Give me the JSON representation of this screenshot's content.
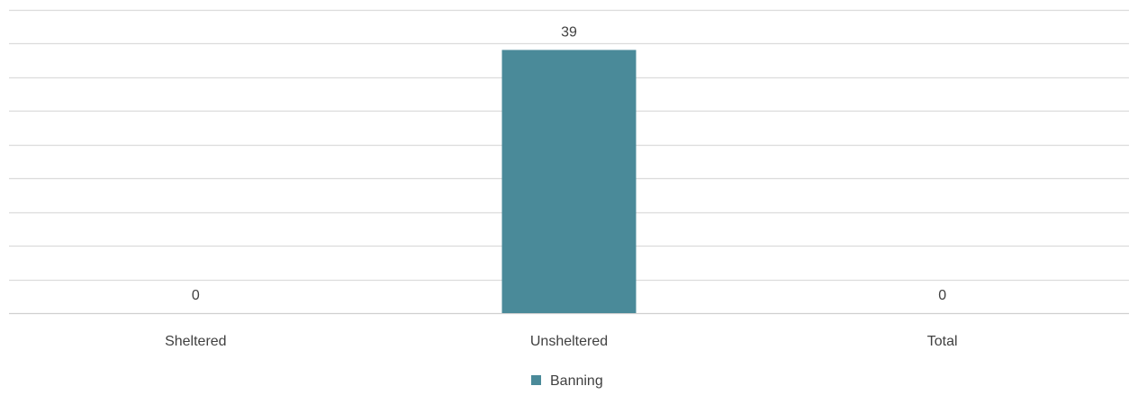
{
  "chart_data": {
    "type": "bar",
    "categories": [
      "Sheltered",
      "Unsheltered",
      "Total"
    ],
    "series": [
      {
        "name": "Banning",
        "values": [
          0,
          39,
          0
        ],
        "color": "#4a8a99"
      }
    ],
    "data_labels": [
      "0",
      "39",
      "0"
    ],
    "ylim": [
      0,
      45
    ],
    "grid": true,
    "y_axis_labels_shown": false,
    "legend_position": "bottom",
    "title": "",
    "xlabel": "",
    "ylabel": ""
  }
}
